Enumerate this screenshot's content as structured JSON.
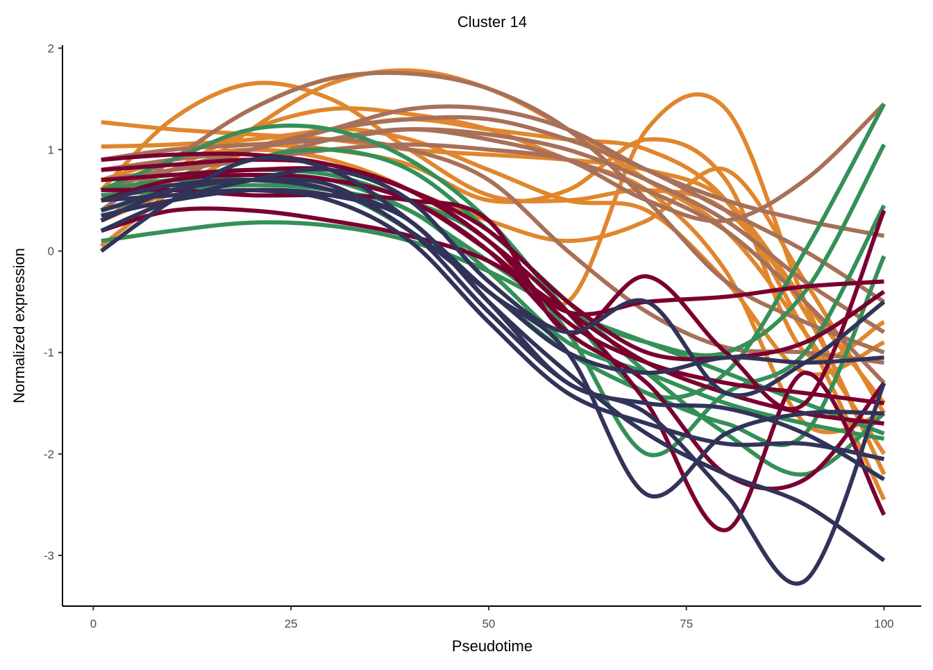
{
  "chart_data": {
    "type": "line",
    "title": "Cluster 14",
    "xlabel": "Pseudotime",
    "ylabel": "Normalized expression",
    "xlim": [
      -3.9,
      104.7
    ],
    "ylim": [
      -3.5,
      2.03
    ],
    "xticks": [
      0,
      25,
      50,
      75,
      100
    ],
    "yticks": [
      2,
      1,
      0,
      -1,
      -2,
      -3
    ],
    "grid": false,
    "legend": "none",
    "x": [
      1,
      10,
      20,
      30,
      40,
      50,
      60,
      70,
      80,
      90,
      100
    ],
    "groups": [
      {
        "color": "#E0862D",
        "series": [
          [
            1.27,
            1.2,
            1.15,
            1.1,
            1.0,
            0.95,
            0.9,
            0.8,
            0.5,
            -0.5,
            -1.5
          ],
          [
            0.6,
            1.3,
            1.65,
            1.5,
            1.0,
            0.55,
            0.5,
            0.6,
            0.4,
            -0.6,
            -2.2
          ],
          [
            0.05,
            0.6,
            1.2,
            1.65,
            1.78,
            1.6,
            1.2,
            0.7,
            0.2,
            -0.8,
            -2.0
          ],
          [
            0.8,
            0.9,
            1.0,
            0.9,
            0.6,
            0.1,
            -0.5,
            1.2,
            1.4,
            -0.5,
            -2.2
          ],
          [
            1.03,
            1.05,
            1.1,
            1.2,
            1.3,
            1.2,
            1.1,
            1.0,
            0.5,
            -0.8,
            -2.45
          ],
          [
            0.7,
            0.9,
            1.0,
            0.9,
            0.6,
            0.3,
            0.1,
            0.3,
            0.8,
            -0.3,
            -1.6
          ],
          [
            0.9,
            1.0,
            1.05,
            1.0,
            0.85,
            0.5,
            0.6,
            1.1,
            0.7,
            -1.0,
            -0.7
          ],
          [
            0.5,
            0.8,
            1.2,
            1.4,
            1.35,
            1.2,
            0.9,
            0.6,
            -0.2,
            -1.7,
            -1.6
          ],
          [
            0.3,
            0.6,
            1.0,
            1.2,
            1.1,
            0.8,
            0.5,
            0.4,
            -0.3,
            -1.2,
            -0.9
          ]
        ]
      },
      {
        "color": "#A87058",
        "series": [
          [
            0.4,
            0.9,
            1.4,
            1.7,
            1.75,
            1.6,
            1.2,
            0.5,
            -0.3,
            -0.7,
            -1.0
          ],
          [
            0.6,
            0.8,
            0.9,
            1.1,
            1.2,
            1.1,
            0.9,
            0.5,
            0.3,
            0.7,
            1.45
          ],
          [
            0.8,
            0.9,
            1.0,
            1.2,
            1.4,
            1.4,
            1.2,
            0.8,
            0.5,
            0.3,
            0.15
          ],
          [
            0.3,
            0.7,
            1.0,
            1.1,
            1.0,
            0.7,
            0.0,
            -0.6,
            -0.95,
            -1.0,
            -1.1
          ],
          [
            0.9,
            1.0,
            1.05,
            1.1,
            1.2,
            1.15,
            1.0,
            0.7,
            0.3,
            -0.3,
            -0.8
          ],
          [
            0.5,
            0.8,
            1.0,
            1.2,
            1.3,
            1.3,
            1.1,
            0.8,
            0.4,
            0.0,
            -0.5
          ],
          [
            0.7,
            0.8,
            0.9,
            1.0,
            1.05,
            1.0,
            0.9,
            0.6,
            0.2,
            -0.5,
            -1.3
          ]
        ]
      },
      {
        "color": "#349058",
        "series": [
          [
            0.1,
            0.2,
            0.28,
            0.25,
            0.1,
            -0.2,
            -0.6,
            -0.9,
            -1.2,
            -1.5,
            -1.8
          ],
          [
            0.6,
            0.9,
            1.2,
            1.2,
            0.9,
            0.3,
            -0.6,
            -1.4,
            -1.2,
            0.0,
            1.45
          ],
          [
            0.5,
            0.7,
            0.75,
            0.7,
            0.4,
            -0.1,
            -0.6,
            -0.9,
            -1.0,
            -0.4,
            1.05
          ],
          [
            0.7,
            0.75,
            0.8,
            0.75,
            0.5,
            0.1,
            -0.8,
            -2.0,
            -1.4,
            -1.0,
            0.45
          ],
          [
            0.6,
            0.7,
            0.7,
            0.6,
            0.2,
            -0.4,
            -1.0,
            -1.4,
            -1.7,
            -1.8,
            -0.05
          ],
          [
            0.4,
            0.6,
            0.9,
            1.0,
            0.8,
            0.2,
            -0.5,
            -1.2,
            -1.8,
            -2.2,
            -1.6
          ],
          [
            0.55,
            0.6,
            0.65,
            0.6,
            0.4,
            -0.2,
            -0.9,
            -1.2,
            -1.5,
            -1.7,
            -1.85
          ]
        ]
      },
      {
        "color": "#7A0030",
        "series": [
          [
            0.2,
            0.4,
            0.4,
            0.3,
            0.15,
            -0.1,
            -0.6,
            -1.1,
            -1.4,
            -1.6,
            -1.7
          ],
          [
            0.9,
            0.95,
            0.95,
            0.85,
            0.6,
            0.1,
            -0.7,
            -1.1,
            -1.3,
            -1.4,
            -1.5
          ],
          [
            0.6,
            0.6,
            0.55,
            0.55,
            0.5,
            0.3,
            -0.8,
            -0.25,
            -1.0,
            -1.5,
            0.4
          ],
          [
            0.7,
            0.75,
            0.8,
            0.8,
            0.6,
            0.1,
            -0.6,
            -1.5,
            -2.75,
            -1.2,
            -2.6
          ],
          [
            0.3,
            0.6,
            0.7,
            0.7,
            0.5,
            0.0,
            -0.6,
            -0.5,
            -0.45,
            -0.35,
            -0.3
          ],
          [
            0.5,
            0.7,
            0.75,
            0.7,
            0.5,
            0.0,
            -0.8,
            -1.3,
            -2.2,
            -2.25,
            -1.3
          ],
          [
            0.8,
            0.85,
            0.9,
            0.85,
            0.6,
            0.2,
            -0.5,
            -1.0,
            -1.05,
            -0.9,
            -0.4
          ]
        ]
      },
      {
        "color": "#323359",
        "series": [
          [
            0.0,
            0.5,
            0.9,
            0.8,
            0.3,
            -0.4,
            -1.0,
            -2.4,
            -1.8,
            -1.6,
            -1.6
          ],
          [
            0.3,
            0.6,
            0.7,
            0.6,
            0.3,
            -0.5,
            -1.2,
            -1.8,
            -2.2,
            -2.5,
            -3.05
          ],
          [
            0.5,
            0.65,
            0.7,
            0.6,
            0.2,
            -0.6,
            -1.3,
            -1.6,
            -2.4,
            -3.25,
            -1.3
          ],
          [
            0.2,
            0.5,
            0.7,
            0.8,
            0.5,
            -0.3,
            -0.8,
            -0.5,
            -1.4,
            -1.1,
            -0.5
          ],
          [
            0.4,
            0.6,
            0.7,
            0.65,
            0.2,
            -0.4,
            -1.0,
            -1.2,
            -1.05,
            -1.1,
            -1.05
          ],
          [
            0.35,
            0.5,
            0.6,
            0.55,
            0.3,
            -0.5,
            -1.3,
            -1.5,
            -1.55,
            -1.8,
            -2.25
          ],
          [
            0.5,
            0.55,
            0.6,
            0.5,
            0.1,
            -0.7,
            -1.4,
            -1.7,
            -1.9,
            -1.9,
            -2.05
          ]
        ]
      }
    ]
  }
}
